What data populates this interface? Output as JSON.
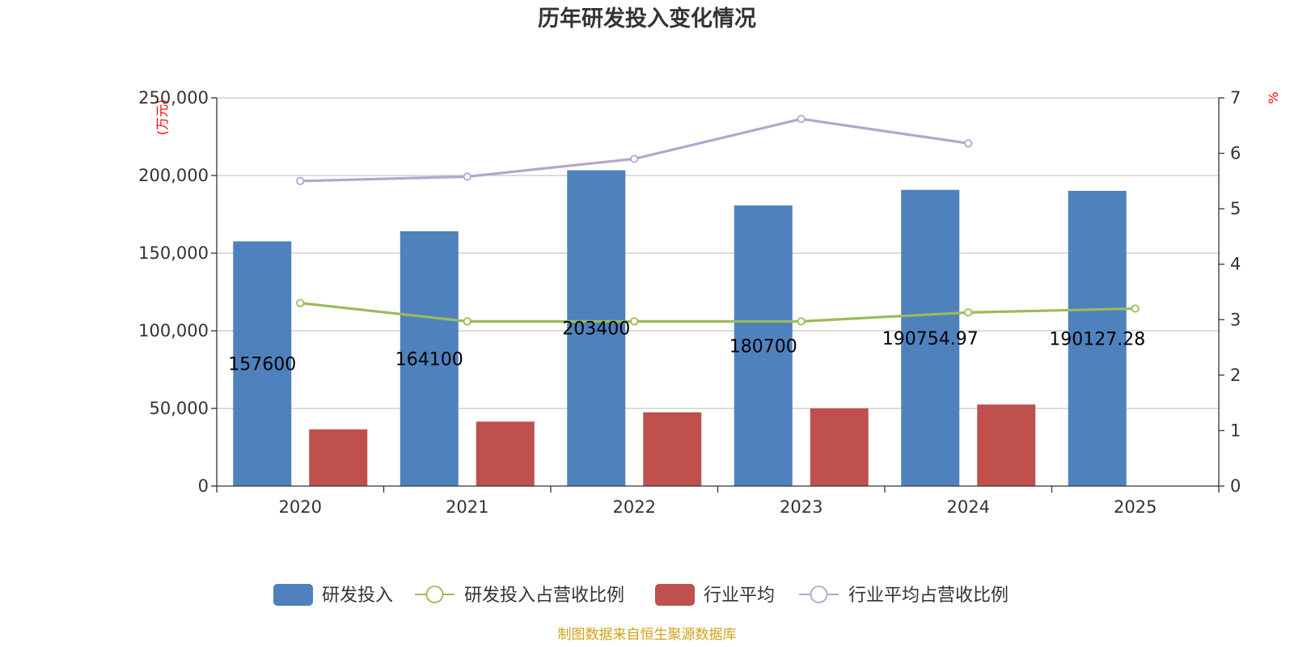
{
  "chart_data": {
    "type": "bar",
    "title": "历年研发投入变化情况",
    "categories": [
      "2020",
      "2021",
      "2022",
      "2023",
      "2024",
      "2025"
    ],
    "y_left": {
      "unit": "(万元)",
      "ylim": [
        0,
        250000
      ],
      "ticks": [
        0,
        50000,
        100000,
        150000,
        200000,
        250000
      ],
      "tick_labels": [
        "0",
        "50,000",
        "100,000",
        "150,000",
        "200,000",
        "250,000"
      ]
    },
    "y_right": {
      "unit": "%",
      "ylim": [
        0,
        7
      ],
      "ticks": [
        0,
        1,
        2,
        3,
        4,
        5,
        6,
        7
      ],
      "tick_labels": [
        "0",
        "1",
        "2",
        "3",
        "4",
        "5",
        "6",
        "7"
      ]
    },
    "grid": true,
    "legend_position": "bottom",
    "series": [
      {
        "name": "研发投入",
        "type": "bar",
        "axis": "left",
        "color": "#4f81bd",
        "values": [
          157600,
          164100,
          203400,
          180700,
          190754.97,
          190127.28
        ],
        "labels": [
          "157600",
          "164100",
          "203400",
          "180700",
          "190754.97",
          "190127.28"
        ]
      },
      {
        "name": "研发投入占营收比例",
        "type": "line",
        "axis": "right",
        "color": "#9bbb59",
        "values": [
          3.3,
          2.97,
          2.97,
          2.97,
          3.13,
          3.2
        ]
      },
      {
        "name": "行业平均",
        "type": "bar",
        "axis": "left",
        "color": "#c0504d",
        "values": [
          36500,
          41500,
          47500,
          50000,
          52500,
          null
        ]
      },
      {
        "name": "行业平均占营收比例",
        "type": "line",
        "axis": "right",
        "color": "#b3a6cf",
        "values": [
          5.5,
          5.58,
          5.9,
          6.62,
          6.18,
          null
        ]
      }
    ]
  },
  "footer": {
    "source": "制图数据来自恒生聚源数据库"
  }
}
